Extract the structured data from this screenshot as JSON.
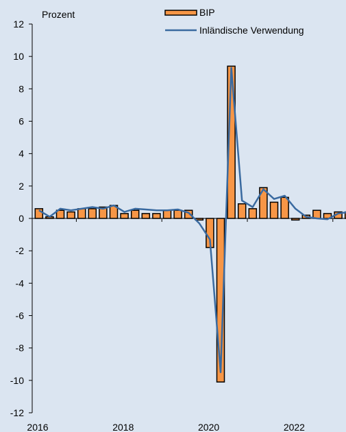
{
  "chart_data": {
    "type": "bar",
    "unit_label": "Prozent",
    "ylim": [
      -12,
      12
    ],
    "y_ticks": [
      12,
      10,
      8,
      6,
      4,
      2,
      0,
      -2,
      -4,
      -6,
      -8,
      -10,
      -12
    ],
    "y_tick_labels": [
      "12",
      "10",
      "8",
      "6",
      "4",
      "2",
      "0",
      "-2",
      "-4",
      "-6",
      "-8",
      "-10",
      "-12"
    ],
    "x_tick_labels": [
      "2016",
      "2018",
      "2020",
      "2022"
    ],
    "grid": false,
    "legend": {
      "placement": "top-right"
    },
    "quarters": [
      "2016Q1",
      "2016Q2",
      "2016Q3",
      "2016Q4",
      "2017Q1",
      "2017Q2",
      "2017Q3",
      "2017Q4",
      "2018Q1",
      "2018Q2",
      "2018Q3",
      "2018Q4",
      "2019Q1",
      "2019Q2",
      "2019Q3",
      "2019Q4",
      "2020Q1",
      "2020Q2",
      "2020Q3",
      "2020Q4",
      "2021Q1",
      "2021Q2",
      "2021Q3",
      "2021Q4",
      "2022Q1",
      "2022Q2",
      "2022Q3",
      "2022Q4",
      "2023Q1",
      "2023Q2"
    ],
    "series": [
      {
        "name": "BIP",
        "kind": "bar",
        "color": "#f79646",
        "values": [
          0.6,
          0.1,
          0.5,
          0.4,
          0.6,
          0.6,
          0.7,
          0.8,
          0.3,
          0.5,
          0.3,
          0.3,
          0.5,
          0.5,
          0.5,
          -0.1,
          -1.8,
          -10.1,
          9.4,
          0.9,
          0.6,
          1.9,
          1.0,
          1.3,
          -0.1,
          0.2,
          0.5,
          0.3,
          0.4,
          0.4
        ]
      },
      {
        "name": "Inländische Verwendung",
        "kind": "line",
        "color": "#3a6aa0",
        "values": [
          0.5,
          0.1,
          0.6,
          0.5,
          0.6,
          0.7,
          0.6,
          0.8,
          0.4,
          0.6,
          0.55,
          0.5,
          0.5,
          0.55,
          0.35,
          -0.3,
          -1.3,
          -9.5,
          9.3,
          1.1,
          0.7,
          1.8,
          1.2,
          1.4,
          0.6,
          0.1,
          0.0,
          -0.05,
          0.3,
          0.4
        ]
      }
    ]
  }
}
